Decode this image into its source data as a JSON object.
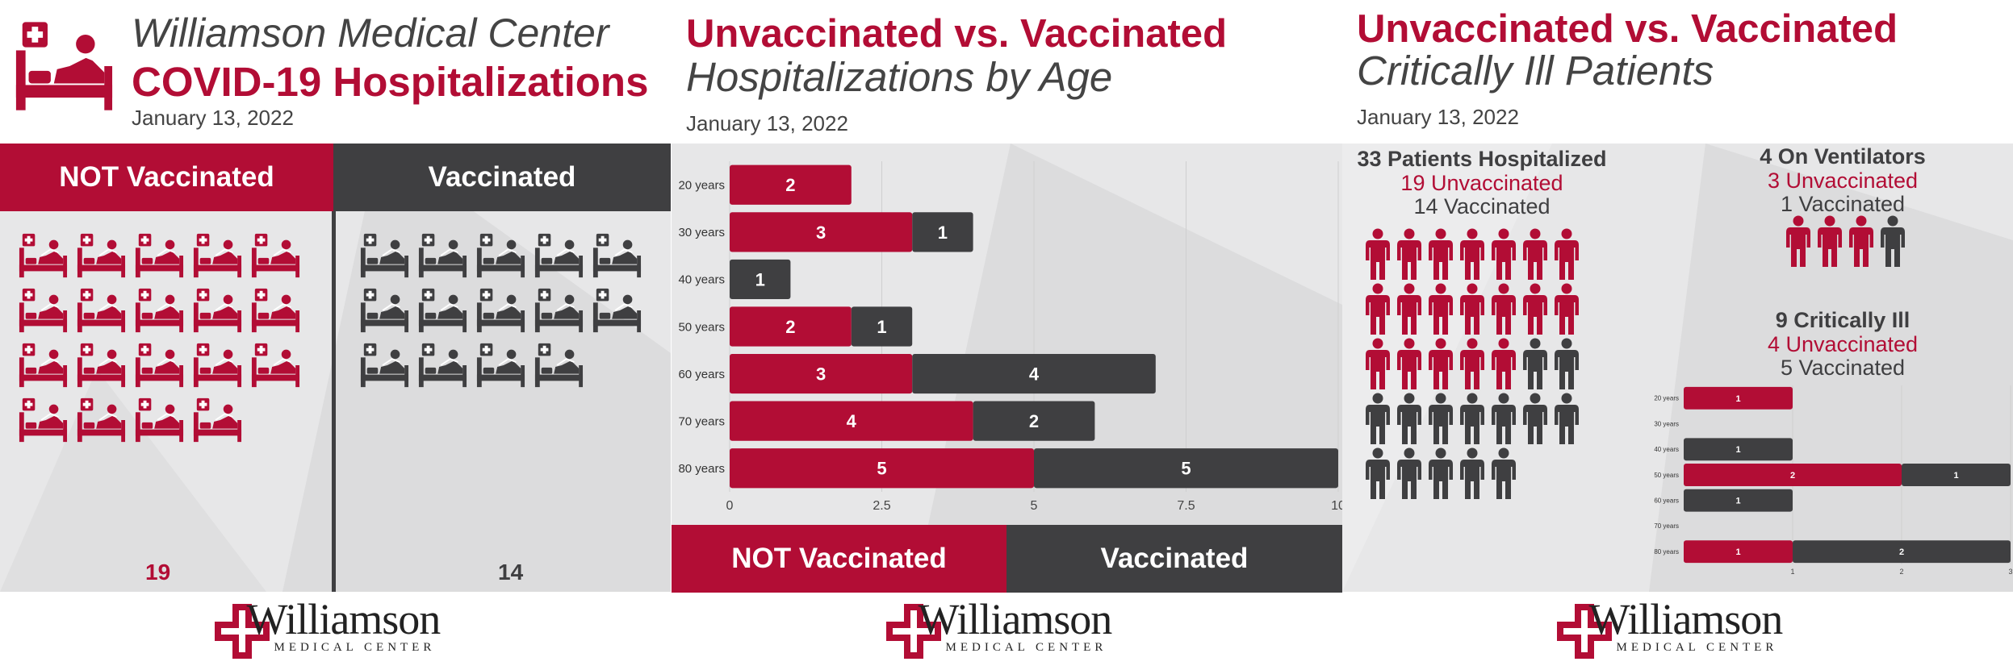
{
  "colors": {
    "unvaccinated": "#b20d35",
    "vaccinated": "#3f3f41",
    "background": "#e7e7e8"
  },
  "logo": {
    "name": "Williamson",
    "sub": "MEDICAL CENTER"
  },
  "panel1": {
    "title_line1": "Williamson Medical Center",
    "title_line2": "COVID-19 Hospitalizations",
    "date": "January 13, 2022",
    "icon": "hospital-bed-icon",
    "not_vaccinated_label": "NOT Vaccinated",
    "vaccinated_label": "Vaccinated",
    "not_vaccinated_count": "19",
    "vaccinated_count": "14"
  },
  "panel2": {
    "title_line1": "Unvaccinated vs. Vaccinated",
    "title_line2": "Hospitalizations by Age",
    "date": "January 13, 2022",
    "legend_unvax": "NOT Vaccinated",
    "legend_vax": "Vaccinated"
  },
  "panel3": {
    "title_line1": "Unvaccinated vs. Vaccinated",
    "title_line2": "Critically Ill Patients",
    "date": "January 13, 2022",
    "hospitalized": {
      "headline": "33 Patients Hospitalized",
      "unvax": "19 Unvaccinated",
      "vax": "14 Vaccinated",
      "unvax_n": 19,
      "vax_n": 14
    },
    "ventilators": {
      "headline": "4 On Ventilators",
      "unvax": "3 Unvaccinated",
      "vax": "1 Vaccinated",
      "unvax_n": 3,
      "vax_n": 1
    },
    "critical": {
      "headline": "9 Critically Ill",
      "unvax": "4 Unvaccinated",
      "vax": "5 Vaccinated"
    }
  },
  "chart_data": [
    {
      "type": "bar",
      "orientation": "horizontal",
      "stacked": true,
      "title": "Unvaccinated vs. Vaccinated Hospitalizations by Age",
      "categories": [
        "20 years",
        "30 years",
        "40 years",
        "50 years",
        "60 years",
        "70 years",
        "80 years"
      ],
      "series": [
        {
          "name": "NOT Vaccinated",
          "values": [
            2,
            3,
            0,
            2,
            3,
            4,
            5
          ]
        },
        {
          "name": "Vaccinated",
          "values": [
            0,
            1,
            1,
            1,
            4,
            2,
            5
          ]
        }
      ],
      "xlim": [
        0,
        10
      ],
      "xticks": [
        "0",
        "2.5",
        "5",
        "7.5",
        "10"
      ],
      "grid": true
    },
    {
      "type": "bar",
      "orientation": "horizontal",
      "stacked": true,
      "title": "9 Critically Ill",
      "categories": [
        "20 years",
        "30 years",
        "40 years",
        "50 years",
        "60 years",
        "70 years",
        "80 years"
      ],
      "series": [
        {
          "name": "Unvaccinated",
          "values": [
            1,
            0,
            0,
            2,
            0,
            0,
            1
          ]
        },
        {
          "name": "Vaccinated",
          "values": [
            0,
            0,
            1,
            1,
            1,
            0,
            2
          ]
        }
      ],
      "xlim": [
        0,
        3
      ],
      "xticks": [
        "1",
        "2",
        "3"
      ],
      "grid": true
    }
  ]
}
